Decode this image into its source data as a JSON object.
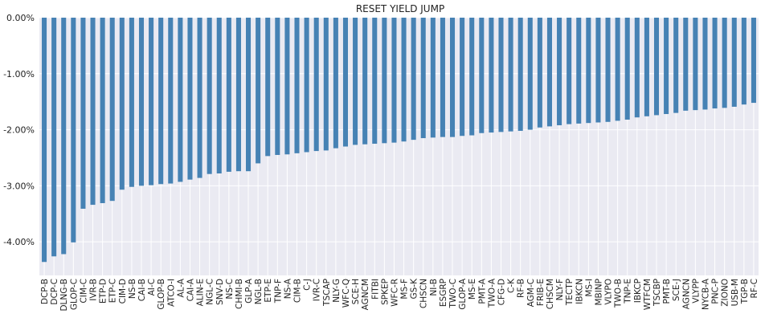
{
  "chart_data": {
    "type": "bar",
    "title": "RESET YIELD JUMP",
    "xlabel": "",
    "ylabel": "",
    "ylim": [
      -4.6,
      0.0
    ],
    "yticks": [
      0.0,
      -1.0,
      -2.0,
      -3.0,
      -4.0
    ],
    "ytick_labels": [
      "0.00%",
      "-1.00%",
      "-2.00%",
      "-3.00%",
      "-4.00%"
    ],
    "grid": true,
    "bar_color": "#4682b4",
    "background_color": "#eaeaf2",
    "grid_color": "#ffffff",
    "categories": [
      "DCP-B",
      "DCP-C",
      "DLNG-B",
      "GLOP-C",
      "CIM-C",
      "IVR-B",
      "ETP-D",
      "ETP-C",
      "CIM-D",
      "NS-B",
      "CAI-B",
      "AI-C",
      "GLOP-B",
      "ATCO-I",
      "AL-A",
      "CAI-A",
      "ALIN-E",
      "NGL-C",
      "SNV-D",
      "NS-C",
      "CHMI-B",
      "GLP-A",
      "NGL-B",
      "ETP-E",
      "TNP-F",
      "NS-A",
      "CIM-B",
      "C-J",
      "IVR-C",
      "TSCAP",
      "NLY-G",
      "WFC-Q",
      "SCE-H",
      "AGNCM",
      "FITBI",
      "SPKEP",
      "WFC-R",
      "MS-F",
      "GS-K",
      "CHSCN",
      "NI-B",
      "ESGRP",
      "TWO-C",
      "GLOP-A",
      "MS-E",
      "PMT-A",
      "TWO-A",
      "CFG-D",
      "C-K",
      "RF-B",
      "AGM-C",
      "FRIB-E",
      "CHSCM",
      "NLY-F",
      "TECTP",
      "IBKCN",
      "MS-I",
      "MBINP",
      "VLYPO",
      "TWO-B",
      "TNP-E",
      "IBKCP",
      "WTFCM",
      "TSCBP",
      "PMT-B",
      "SCE-J",
      "AGNCN",
      "VLYPP",
      "NYCB-A",
      "PNC-P",
      "ZIONO",
      "USB-M",
      "TGP-B",
      "RF-C"
    ],
    "values": [
      -4.36,
      -4.26,
      -4.22,
      -4.01,
      -3.41,
      -3.34,
      -3.31,
      -3.27,
      -3.07,
      -3.02,
      -3.0,
      -2.99,
      -2.97,
      -2.96,
      -2.93,
      -2.89,
      -2.86,
      -2.79,
      -2.78,
      -2.75,
      -2.74,
      -2.74,
      -2.6,
      -2.47,
      -2.45,
      -2.44,
      -2.42,
      -2.4,
      -2.38,
      -2.37,
      -2.33,
      -2.3,
      -2.27,
      -2.26,
      -2.25,
      -2.24,
      -2.23,
      -2.21,
      -2.18,
      -2.15,
      -2.14,
      -2.13,
      -2.13,
      -2.11,
      -2.1,
      -2.06,
      -2.05,
      -2.04,
      -2.03,
      -2.02,
      -2.0,
      -1.96,
      -1.94,
      -1.92,
      -1.9,
      -1.89,
      -1.88,
      -1.87,
      -1.86,
      -1.84,
      -1.82,
      -1.78,
      -1.76,
      -1.74,
      -1.72,
      -1.7,
      -1.66,
      -1.65,
      -1.64,
      -1.62,
      -1.61,
      -1.59,
      -1.55,
      -1.52
    ]
  }
}
